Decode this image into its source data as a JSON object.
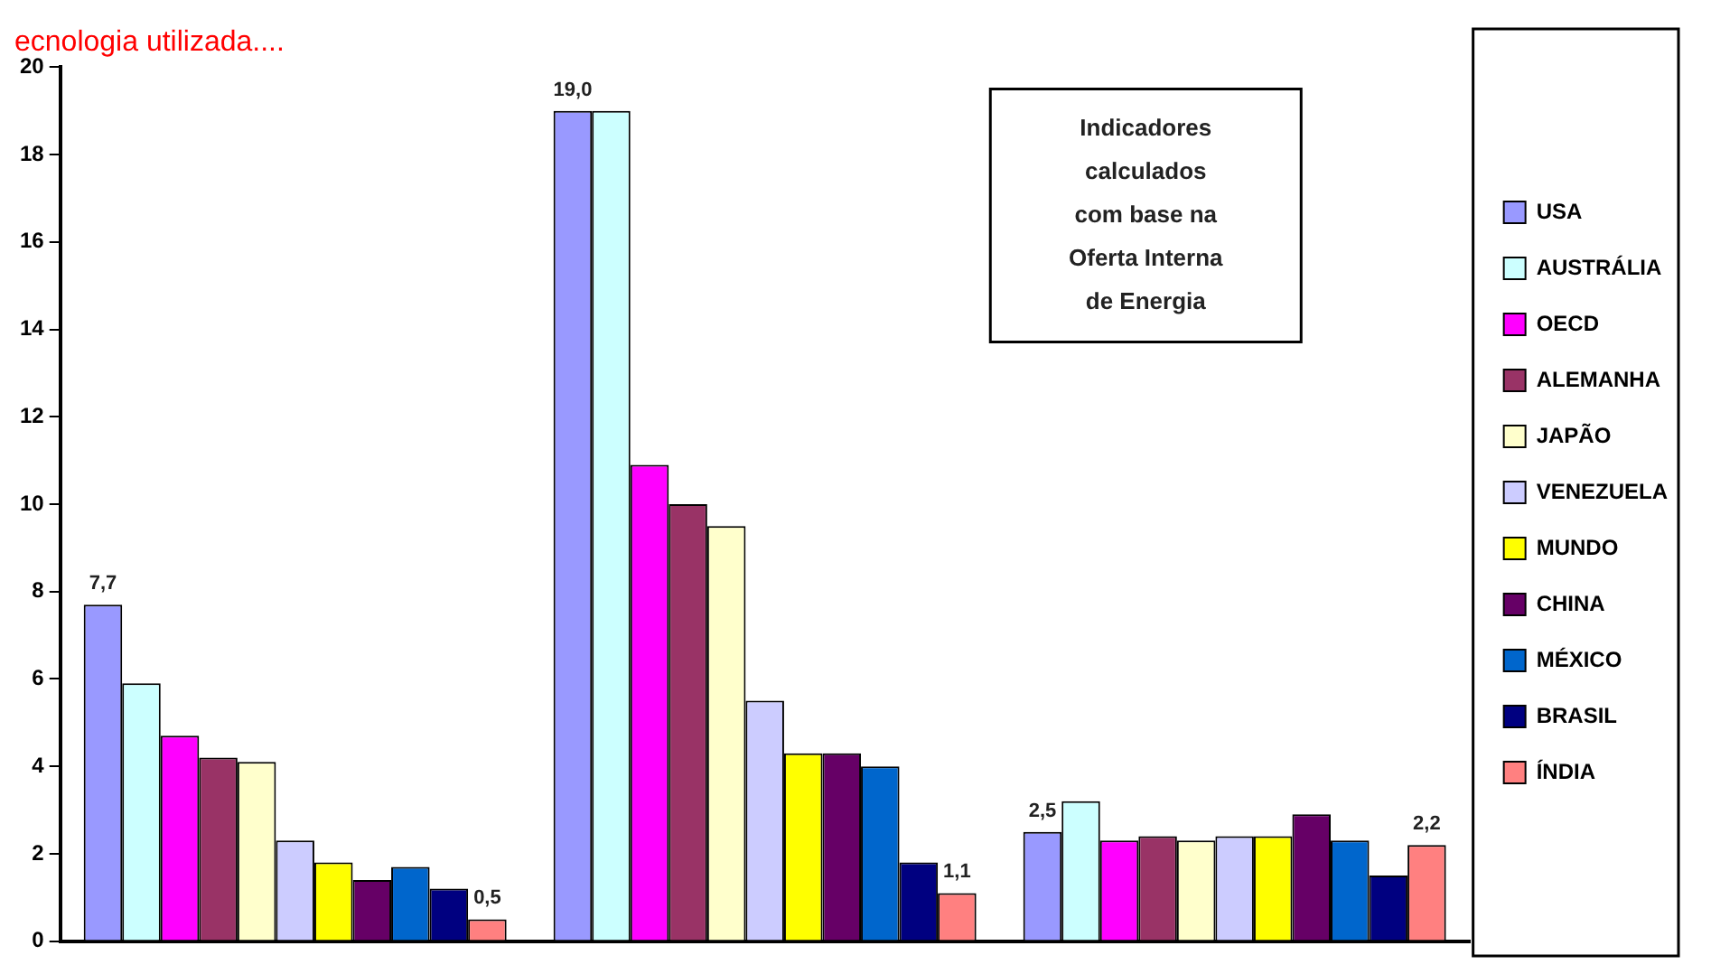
{
  "chart_data": {
    "type": "bar",
    "title": "ecnologia utilizada....",
    "categories": [
      null,
      null,
      null
    ],
    "series": [
      {
        "name": "USA",
        "color": "#9999ff",
        "values": [
          7.7,
          19.0,
          2.5
        ],
        "value_labels": [
          "7,7",
          "19,0",
          "2,5"
        ]
      },
      {
        "name": "AUSTRÁLIA",
        "color": "#ccffff",
        "values": [
          5.9,
          19.0,
          3.2
        ]
      },
      {
        "name": "OECD",
        "color": "#ff00ff",
        "values": [
          4.7,
          10.9,
          2.3
        ]
      },
      {
        "name": "ALEMANHA",
        "color": "#993366",
        "values": [
          4.2,
          10.0,
          2.4
        ]
      },
      {
        "name": "JAPÃO",
        "color": "#ffffcc",
        "values": [
          4.1,
          9.5,
          2.3
        ]
      },
      {
        "name": "VENEZUELA",
        "color": "#ccccff",
        "values": [
          2.3,
          5.5,
          2.4
        ]
      },
      {
        "name": "MUNDO",
        "color": "#ffff00",
        "values": [
          1.8,
          4.3,
          2.4
        ]
      },
      {
        "name": "CHINA",
        "color": "#660066",
        "values": [
          1.4,
          4.3,
          2.9
        ]
      },
      {
        "name": "MÉXICO",
        "color": "#0066cc",
        "values": [
          1.7,
          4.0,
          2.3
        ]
      },
      {
        "name": "BRASIL",
        "color": "#000080",
        "values": [
          1.2,
          1.8,
          1.5
        ]
      },
      {
        "name": "ÍNDIA",
        "color": "#ff8080",
        "values": [
          0.5,
          1.1,
          2.2
        ],
        "value_labels": [
          "0,5",
          "1,1",
          "2,2"
        ]
      }
    ],
    "ylim": [
      0,
      20
    ],
    "yticks": [
      0,
      2,
      4,
      6,
      8,
      10,
      12,
      14,
      16,
      18,
      20
    ],
    "grid": false,
    "legend": "right",
    "tick_labels": "y",
    "annotations": [
      "Indicadores\ncalculados\ncom base na\nOferta Interna\nde Energia"
    ]
  }
}
